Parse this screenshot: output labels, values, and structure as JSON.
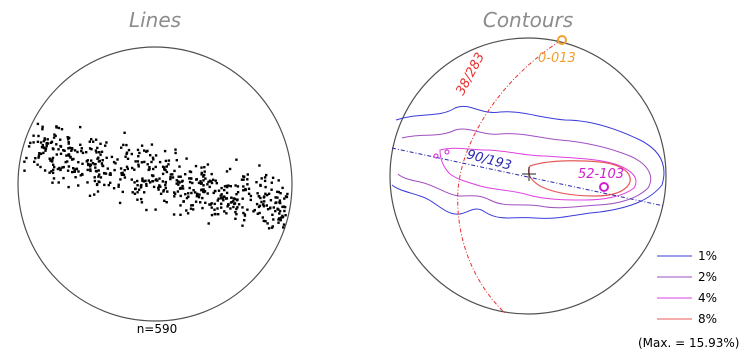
{
  "left_panel": {
    "title": "Lines",
    "count_label": "n=590"
  },
  "right_panel": {
    "title": "Contours",
    "annotations": {
      "pole": "0-013",
      "great_circle": "38/283",
      "fold_axis_plane": "90/193",
      "max_point": "52-103"
    },
    "legend": {
      "items": [
        {
          "label": "1%",
          "color": "#3b3bd8"
        },
        {
          "label": "2%",
          "color": "#a050c0"
        },
        {
          "label": "4%",
          "color": "#e040e0"
        },
        {
          "label": "8%",
          "color": "#e85a5a"
        }
      ],
      "max_label": "(Max. = 15.93%)"
    }
  },
  "colors": {
    "circle": "#505050",
    "dots": "#000000",
    "title": "#8c8c8c",
    "orange": "#f0a030",
    "red": "#e83030",
    "blue": "#2a2ab0",
    "magenta": "#d020d0"
  }
}
